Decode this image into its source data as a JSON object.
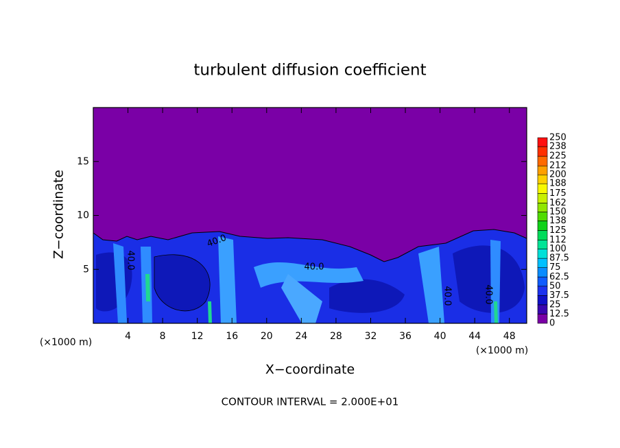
{
  "chart_data": {
    "type": "contour",
    "title": "turbulent diffusion coefficient",
    "xlabel": "X−coordinate",
    "ylabel": "Z−coordinate",
    "x_unit_label": "(×1000 m)",
    "x_unit_label_right": "(×1000 m)",
    "xlim": [
      0,
      50
    ],
    "xticks": [
      4,
      8,
      12,
      16,
      20,
      24,
      28,
      32,
      36,
      40,
      44,
      48
    ],
    "ylim": [
      0,
      20
    ],
    "yticks": [
      5,
      10,
      15
    ],
    "contour_labels": [
      "40.0",
      "40.0",
      "40.0",
      "40.0",
      "40.0"
    ],
    "footer": "CONTOUR INTERVAL = 2.000E+01",
    "colorbar": {
      "levels": [
        0,
        12.5,
        25,
        37.5,
        50,
        62.5,
        75,
        87.5,
        100,
        112,
        125,
        138,
        150,
        162,
        175,
        188,
        200,
        212,
        225,
        238,
        250
      ],
      "colors": [
        "#7a00a6",
        "#3a06b0",
        "#1010c8",
        "#1c32f0",
        "#0f5cff",
        "#0a8cff",
        "#00c0ff",
        "#00e0d8",
        "#00e496",
        "#00dc5a",
        "#10d218",
        "#50dc00",
        "#90e600",
        "#c8f000",
        "#f8f800",
        "#ffd000",
        "#ffa000",
        "#ff6a00",
        "#ff3000",
        "#ff1010",
        "#f08888"
      ]
    }
  }
}
